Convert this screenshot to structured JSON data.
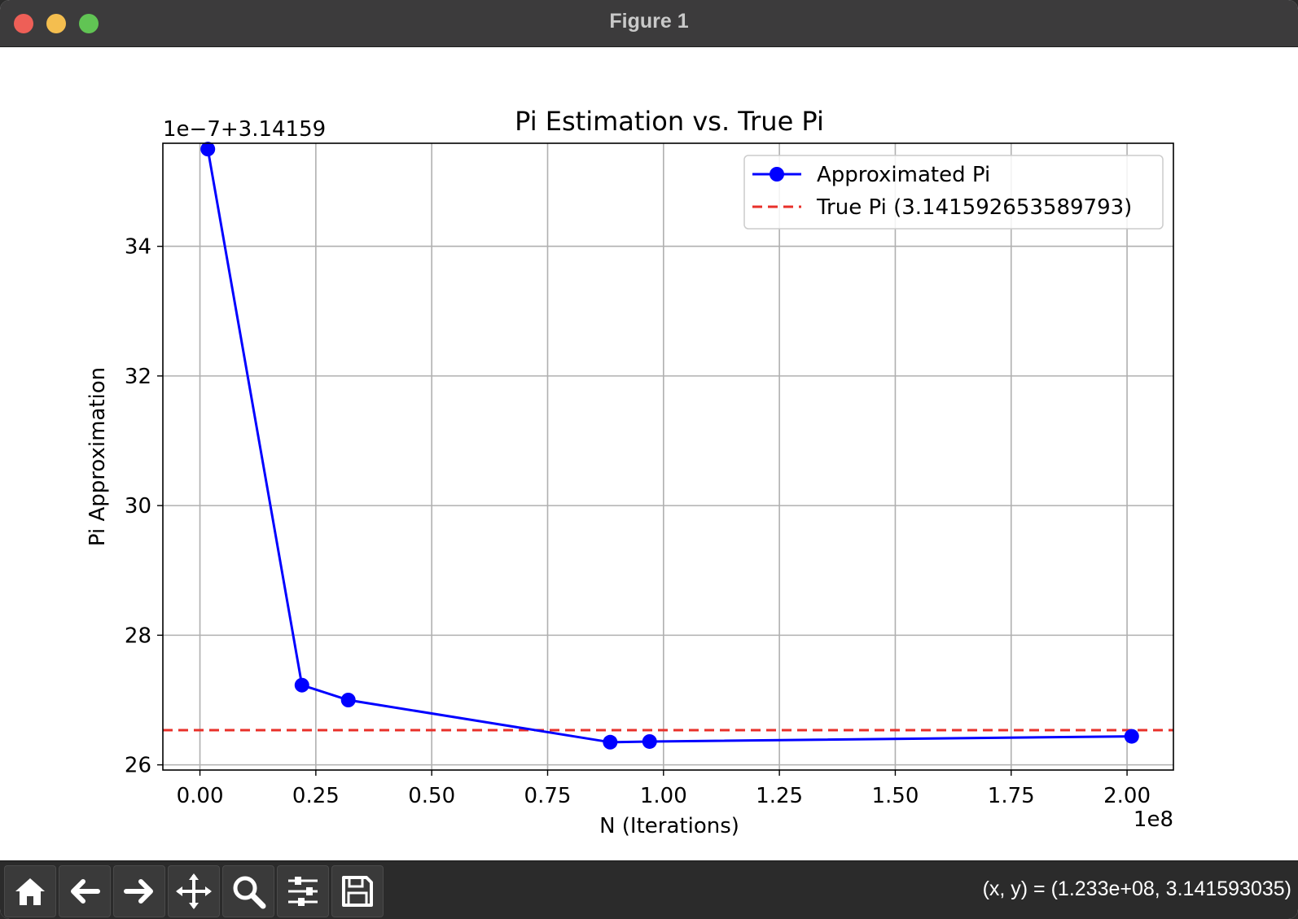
{
  "window": {
    "title": "Figure 1"
  },
  "toolbar": {
    "buttons": [
      "home-icon",
      "back-arrow-icon",
      "forward-arrow-icon",
      "pan-icon",
      "zoom-icon",
      "configure-subplots-icon",
      "save-icon"
    ],
    "coords_text": "(x, y) = (1.233e+08, 3.141593035)"
  },
  "chart_data": {
    "type": "line",
    "title": "Pi Estimation vs. True Pi",
    "xlabel": "N (Iterations)",
    "ylabel": "Pi Approximation",
    "x_offset_label": "1e8",
    "y_offset_label": "1e−7+3.14159",
    "xlim": [
      -8000000,
      210000000
    ],
    "ylim": [
      3.141592592,
      3.141593559
    ],
    "x_ticks": [
      0,
      25000000,
      50000000,
      75000000,
      100000000,
      125000000,
      150000000,
      175000000,
      200000000
    ],
    "x_tick_labels": [
      "0.00",
      "0.25",
      "0.50",
      "0.75",
      "1.00",
      "1.25",
      "1.50",
      "1.75",
      "2.00"
    ],
    "y_ticks": [
      3.1415926,
      3.1415928,
      3.141593,
      3.1415932,
      3.1415934
    ],
    "y_tick_labels": [
      "26",
      "28",
      "30",
      "32",
      "34"
    ],
    "grid": true,
    "legend_position": "top-right",
    "series": [
      {
        "name": "Approximated Pi",
        "color": "#0000ff",
        "style": "line-marker",
        "x": [
          1700000,
          22000000,
          32000000,
          88500000,
          97000000,
          201000000
        ],
        "y": [
          3.14159355,
          3.141592723,
          3.1415927,
          3.141592635,
          3.141592636,
          3.141592644
        ]
      },
      {
        "name": "True Pi (3.141592653589793)",
        "color": "#e8302a",
        "style": "dashed-hline",
        "y": 3.141592653589793
      }
    ]
  }
}
